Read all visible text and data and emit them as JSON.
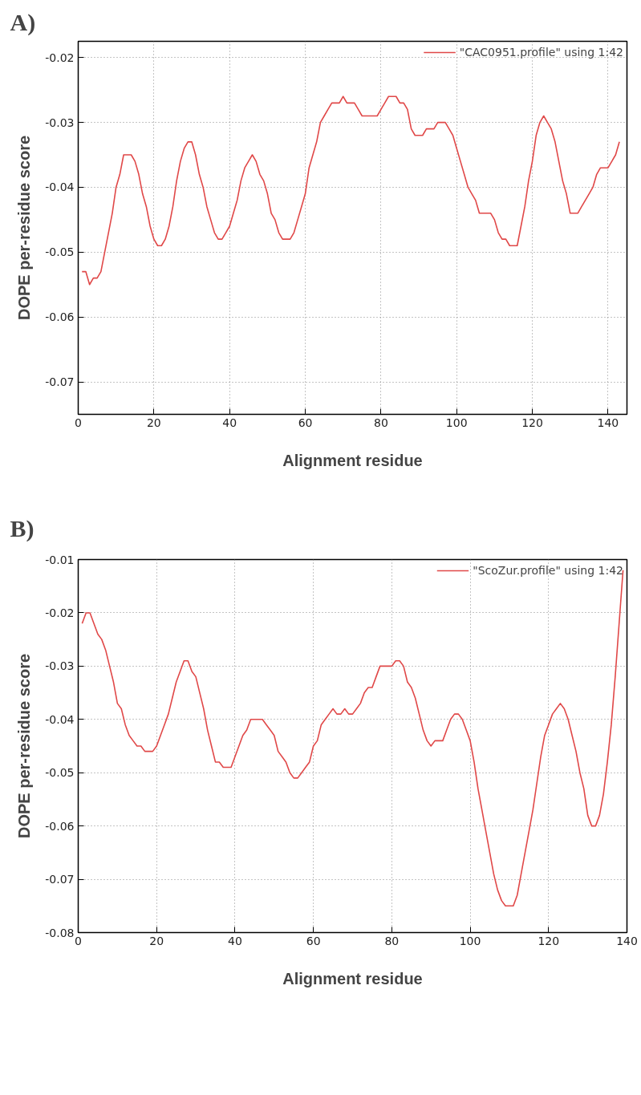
{
  "chart_data": [
    {
      "type": "line",
      "title": "A)",
      "xlabel": "Alignment residue",
      "ylabel": "DOPE per-residue score",
      "xlim": [
        0,
        145
      ],
      "ylim": [
        -0.075,
        -0.0175
      ],
      "xticks": [
        0,
        20,
        40,
        60,
        80,
        100,
        120,
        140
      ],
      "yticks": [
        -0.07,
        -0.06,
        -0.05,
        -0.04,
        -0.03,
        -0.02
      ],
      "grid": true,
      "legend": "top right",
      "line_style": "solid",
      "marker": "none",
      "series": [
        {
          "name": "\"CAC0951.profile\" using 1:42",
          "color": "#e04848",
          "x": [
            1,
            2,
            3,
            4,
            5,
            6,
            7,
            8,
            9,
            10,
            11,
            12,
            13,
            14,
            15,
            16,
            17,
            18,
            19,
            20,
            21,
            22,
            23,
            24,
            25,
            26,
            27,
            28,
            29,
            30,
            31,
            32,
            33,
            34,
            35,
            36,
            37,
            38,
            39,
            40,
            41,
            42,
            43,
            44,
            45,
            46,
            47,
            48,
            49,
            50,
            51,
            52,
            53,
            54,
            55,
            56,
            57,
            58,
            59,
            60,
            61,
            62,
            63,
            64,
            65,
            66,
            67,
            68,
            69,
            70,
            71,
            72,
            73,
            74,
            75,
            76,
            77,
            78,
            79,
            80,
            81,
            82,
            83,
            84,
            85,
            86,
            87,
            88,
            89,
            90,
            91,
            92,
            93,
            94,
            95,
            96,
            97,
            98,
            99,
            100,
            101,
            102,
            103,
            104,
            105,
            106,
            107,
            108,
            109,
            110,
            111,
            112,
            113,
            114,
            115,
            116,
            117,
            118,
            119,
            120,
            121,
            122,
            123,
            124,
            125,
            126,
            127,
            128,
            129,
            130,
            131,
            132,
            133,
            134,
            135,
            136,
            137,
            138,
            139,
            140,
            141,
            142,
            143
          ],
          "values": [
            -0.053,
            -0.053,
            -0.055,
            -0.054,
            -0.054,
            -0.053,
            -0.05,
            -0.047,
            -0.044,
            -0.04,
            -0.038,
            -0.035,
            -0.035,
            -0.035,
            -0.036,
            -0.038,
            -0.041,
            -0.043,
            -0.046,
            -0.048,
            -0.049,
            -0.049,
            -0.048,
            -0.046,
            -0.043,
            -0.039,
            -0.036,
            -0.034,
            -0.033,
            -0.033,
            -0.035,
            -0.038,
            -0.04,
            -0.043,
            -0.045,
            -0.047,
            -0.048,
            -0.048,
            -0.047,
            -0.046,
            -0.044,
            -0.042,
            -0.039,
            -0.037,
            -0.036,
            -0.035,
            -0.036,
            -0.038,
            -0.039,
            -0.041,
            -0.044,
            -0.045,
            -0.047,
            -0.048,
            -0.048,
            -0.048,
            -0.047,
            -0.045,
            -0.043,
            -0.041,
            -0.037,
            -0.035,
            -0.033,
            -0.03,
            -0.029,
            -0.028,
            -0.027,
            -0.027,
            -0.027,
            -0.026,
            -0.027,
            -0.027,
            -0.027,
            -0.028,
            -0.029,
            -0.029,
            -0.029,
            -0.029,
            -0.029,
            -0.028,
            -0.027,
            -0.026,
            -0.026,
            -0.026,
            -0.027,
            -0.027,
            -0.028,
            -0.031,
            -0.032,
            -0.032,
            -0.032,
            -0.031,
            -0.031,
            -0.031,
            -0.03,
            -0.03,
            -0.03,
            -0.031,
            -0.032,
            -0.034,
            -0.036,
            -0.038,
            -0.04,
            -0.041,
            -0.042,
            -0.044,
            -0.044,
            -0.044,
            -0.044,
            -0.045,
            -0.047,
            -0.048,
            -0.048,
            -0.049,
            -0.049,
            -0.049,
            -0.046,
            -0.043,
            -0.039,
            -0.036,
            -0.032,
            -0.03,
            -0.029,
            -0.03,
            -0.031,
            -0.033,
            -0.036,
            -0.039,
            -0.041,
            -0.044,
            -0.044,
            -0.044,
            -0.043,
            -0.042,
            -0.041,
            -0.04,
            -0.038,
            -0.037,
            -0.037,
            -0.037,
            -0.036,
            -0.035,
            -0.033
          ]
        }
      ]
    },
    {
      "type": "line",
      "title": "B)",
      "xlabel": "Alignment residue",
      "ylabel": "DOPE per-residue score",
      "xlim": [
        0,
        140
      ],
      "ylim": [
        -0.08,
        -0.01
      ],
      "xticks": [
        0,
        20,
        40,
        60,
        80,
        100,
        120,
        140
      ],
      "yticks": [
        -0.08,
        -0.07,
        -0.06,
        -0.05,
        -0.04,
        -0.03,
        -0.02,
        -0.01
      ],
      "grid": true,
      "legend": "top right",
      "line_style": "solid",
      "marker": "none",
      "series": [
        {
          "name": "\"ScoZur.profile\" using 1:42",
          "color": "#e04848",
          "x": [
            1,
            2,
            3,
            4,
            5,
            6,
            7,
            8,
            9,
            10,
            11,
            12,
            13,
            14,
            15,
            16,
            17,
            18,
            19,
            20,
            21,
            22,
            23,
            24,
            25,
            26,
            27,
            28,
            29,
            30,
            31,
            32,
            33,
            34,
            35,
            36,
            37,
            38,
            39,
            40,
            41,
            42,
            43,
            44,
            45,
            46,
            47,
            48,
            49,
            50,
            51,
            52,
            53,
            54,
            55,
            56,
            57,
            58,
            59,
            60,
            61,
            62,
            63,
            64,
            65,
            66,
            67,
            68,
            69,
            70,
            71,
            72,
            73,
            74,
            75,
            76,
            77,
            78,
            79,
            80,
            81,
            82,
            83,
            84,
            85,
            86,
            87,
            88,
            89,
            90,
            91,
            92,
            93,
            94,
            95,
            96,
            97,
            98,
            99,
            100,
            101,
            102,
            103,
            104,
            105,
            106,
            107,
            108,
            109,
            110,
            111,
            112,
            113,
            114,
            115,
            116,
            117,
            118,
            119,
            120,
            121,
            122,
            123,
            124,
            125,
            126,
            127,
            128,
            129,
            130,
            131,
            132,
            133,
            134,
            135,
            136,
            137,
            138,
            139
          ],
          "values": [
            -0.022,
            -0.02,
            -0.02,
            -0.022,
            -0.024,
            -0.025,
            -0.027,
            -0.03,
            -0.033,
            -0.037,
            -0.038,
            -0.041,
            -0.043,
            -0.044,
            -0.045,
            -0.045,
            -0.046,
            -0.046,
            -0.046,
            -0.045,
            -0.043,
            -0.041,
            -0.039,
            -0.036,
            -0.033,
            -0.031,
            -0.029,
            -0.029,
            -0.031,
            -0.032,
            -0.035,
            -0.038,
            -0.042,
            -0.045,
            -0.048,
            -0.048,
            -0.049,
            -0.049,
            -0.049,
            -0.047,
            -0.045,
            -0.043,
            -0.042,
            -0.04,
            -0.04,
            -0.04,
            -0.04,
            -0.041,
            -0.042,
            -0.043,
            -0.046,
            -0.047,
            -0.048,
            -0.05,
            -0.051,
            -0.051,
            -0.05,
            -0.049,
            -0.048,
            -0.045,
            -0.044,
            -0.041,
            -0.04,
            -0.039,
            -0.038,
            -0.039,
            -0.039,
            -0.038,
            -0.039,
            -0.039,
            -0.038,
            -0.037,
            -0.035,
            -0.034,
            -0.034,
            -0.032,
            -0.03,
            -0.03,
            -0.03,
            -0.03,
            -0.029,
            -0.029,
            -0.03,
            -0.033,
            -0.034,
            -0.036,
            -0.039,
            -0.042,
            -0.044,
            -0.045,
            -0.044,
            -0.044,
            -0.044,
            -0.042,
            -0.04,
            -0.039,
            -0.039,
            -0.04,
            -0.042,
            -0.044,
            -0.048,
            -0.053,
            -0.057,
            -0.061,
            -0.065,
            -0.069,
            -0.072,
            -0.074,
            -0.075,
            -0.075,
            -0.075,
            -0.073,
            -0.069,
            -0.065,
            -0.061,
            -0.057,
            -0.052,
            -0.047,
            -0.043,
            -0.041,
            -0.039,
            -0.038,
            -0.037,
            -0.038,
            -0.04,
            -0.043,
            -0.046,
            -0.05,
            -0.053,
            -0.058,
            -0.06,
            -0.06,
            -0.058,
            -0.054,
            -0.048,
            -0.041,
            -0.032,
            -0.022,
            -0.012
          ]
        }
      ]
    }
  ]
}
